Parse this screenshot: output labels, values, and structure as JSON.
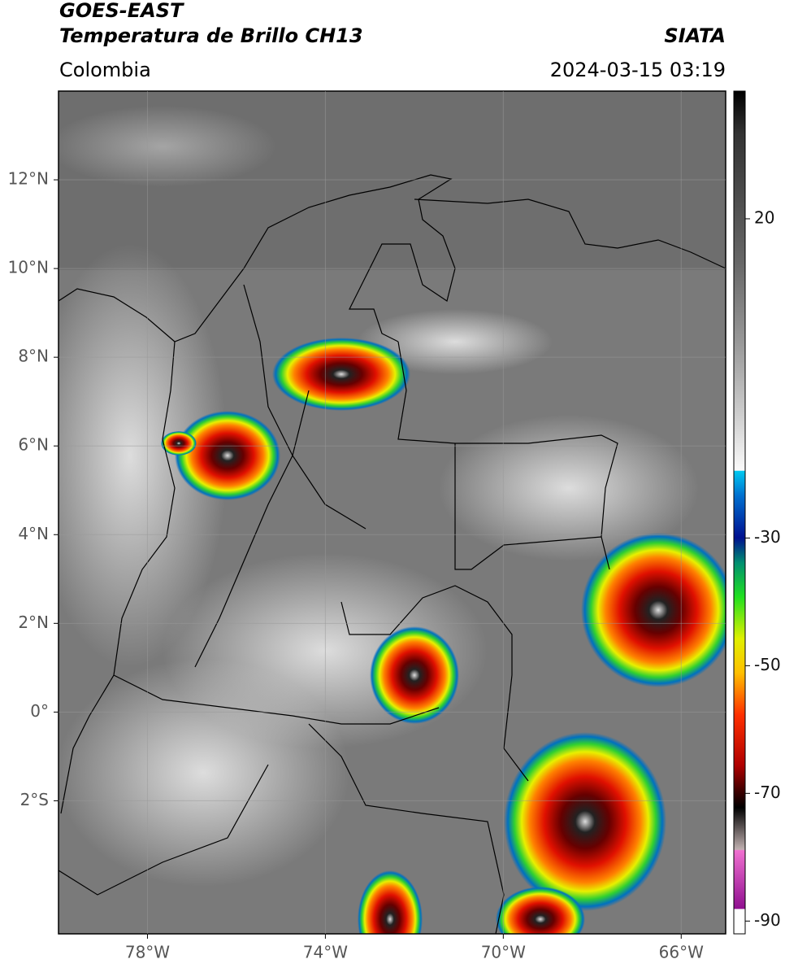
{
  "header": {
    "satellite": "GOES-EAST",
    "product": "Temperatura de Brillo CH13",
    "agency": "SIATA",
    "region": "Colombia",
    "datetime": "2024-03-15 03:19"
  },
  "map": {
    "xlim": [
      -80,
      -65
    ],
    "ylim": [
      -5,
      14
    ],
    "grid": true,
    "xticks": [
      {
        "value": -78,
        "label": "78°W"
      },
      {
        "value": -74,
        "label": "74°W"
      },
      {
        "value": -70,
        "label": "70°W"
      },
      {
        "value": -66,
        "label": "66°W"
      }
    ],
    "yticks": [
      {
        "value": 12,
        "label": "12°N"
      },
      {
        "value": 10,
        "label": "10°N"
      },
      {
        "value": 8,
        "label": "8°N"
      },
      {
        "value": 6,
        "label": "6°N"
      },
      {
        "value": 4,
        "label": "4°N"
      },
      {
        "value": 2,
        "label": "2°N"
      },
      {
        "value": 0,
        "label": "0°"
      },
      {
        "value": -2,
        "label": "2°S"
      }
    ]
  },
  "colorbar": {
    "clim": [
      -92,
      40
    ],
    "ticks": [
      20,
      -30,
      -50,
      -70,
      -90
    ]
  }
}
